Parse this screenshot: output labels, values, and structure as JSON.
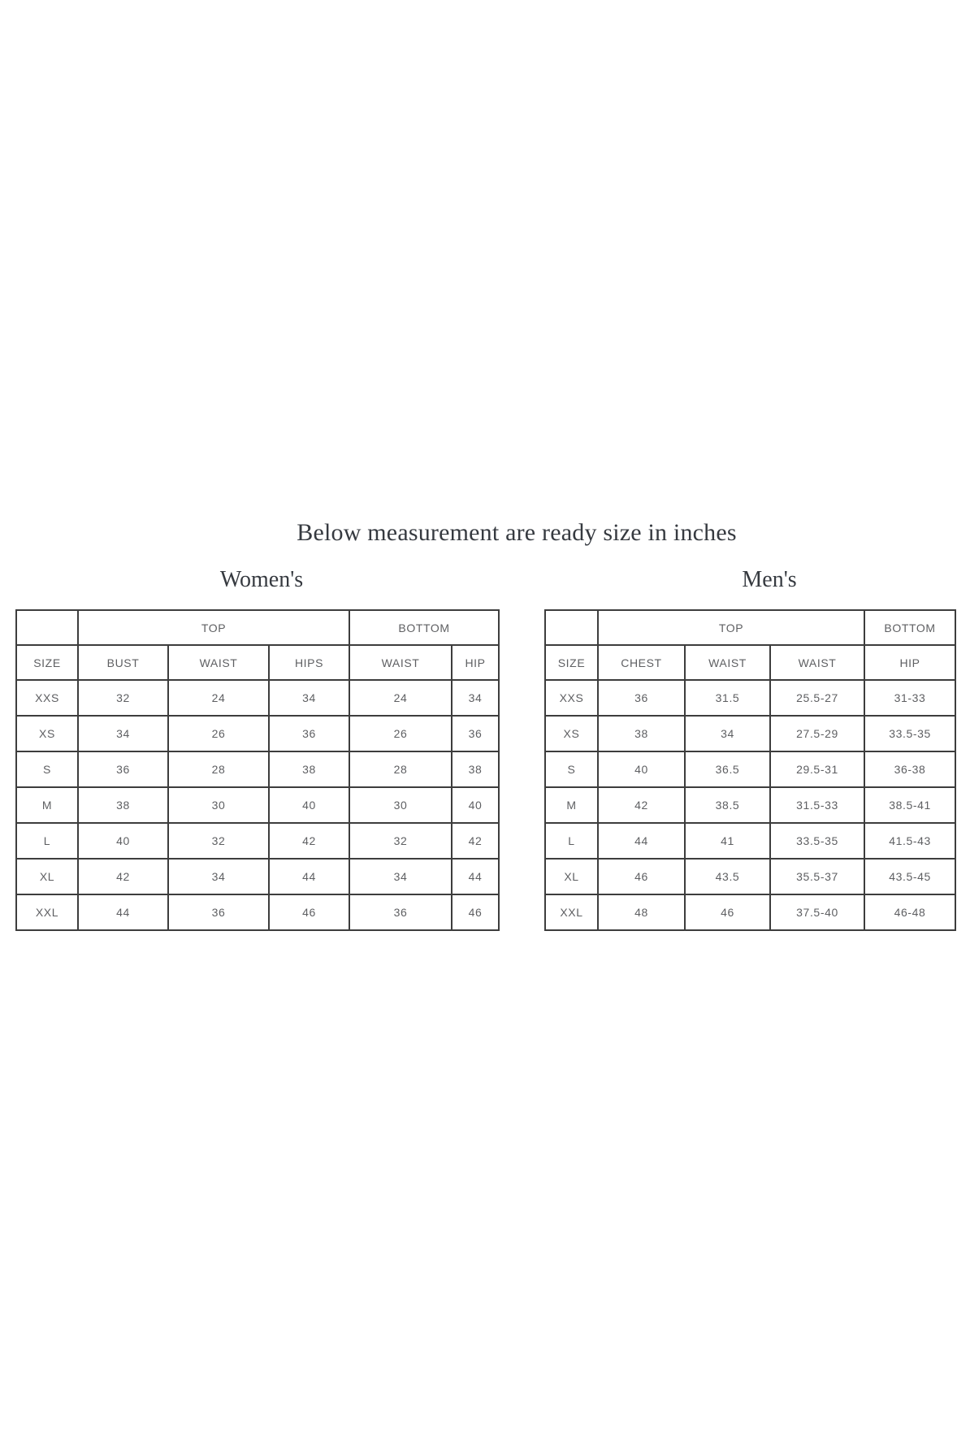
{
  "page": {
    "title": "Below measurement are ready size in inches",
    "background": "#ffffff"
  },
  "colors": {
    "table_border": "#3d3d3d",
    "table_text": "#5e5f62",
    "heading_text": "#363a40"
  },
  "womens": {
    "heading": "Women's",
    "group_headers": {
      "blank": "",
      "top": "TOP",
      "bottom": "BOTTOM"
    },
    "col_headers": [
      "SIZE",
      "BUST",
      "WAIST",
      "HIPS",
      "WAIST",
      "HIP"
    ],
    "rows": [
      [
        "XXS",
        "32",
        "24",
        "34",
        "24",
        "34"
      ],
      [
        "XS",
        "34",
        "26",
        "36",
        "26",
        "36"
      ],
      [
        "S",
        "36",
        "28",
        "38",
        "28",
        "38"
      ],
      [
        "M",
        "38",
        "30",
        "40",
        "30",
        "40"
      ],
      [
        "L",
        "40",
        "32",
        "42",
        "32",
        "42"
      ],
      [
        "XL",
        "42",
        "34",
        "44",
        "34",
        "44"
      ],
      [
        "XXL",
        "44",
        "36",
        "46",
        "36",
        "46"
      ]
    ]
  },
  "mens": {
    "heading": "Men's",
    "group_headers": {
      "blank": "",
      "top": "TOP",
      "bottom": "BOTTOM"
    },
    "col_headers": [
      "SIZE",
      "CHEST",
      "WAIST",
      "WAIST",
      "HIP"
    ],
    "rows": [
      [
        "XXS",
        "36",
        "31.5",
        "25.5-27",
        "31-33"
      ],
      [
        "XS",
        "38",
        "34",
        "27.5-29",
        "33.5-35"
      ],
      [
        "S",
        "40",
        "36.5",
        "29.5-31",
        "36-38"
      ],
      [
        "M",
        "42",
        "38.5",
        "31.5-33",
        "38.5-41"
      ],
      [
        "L",
        "44",
        "41",
        "33.5-35",
        "41.5-43"
      ],
      [
        "XL",
        "46",
        "43.5",
        "35.5-37",
        "43.5-45"
      ],
      [
        "XXL",
        "48",
        "46",
        "37.5-40",
        "46-48"
      ]
    ]
  }
}
